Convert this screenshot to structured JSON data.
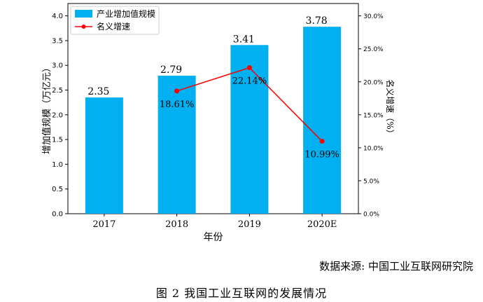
{
  "chart_data": {
    "type": "bar",
    "categories": [
      "2017",
      "2018",
      "2019",
      "2020E"
    ],
    "series": [
      {
        "name": "产业增加值规模",
        "type": "bar",
        "axis": "left",
        "values": [
          2.35,
          2.79,
          3.41,
          3.78
        ],
        "labels": [
          "2.35",
          "2.79",
          "3.41",
          "3.78"
        ],
        "color": "#00b0f0"
      },
      {
        "name": "名义增速",
        "type": "line",
        "axis": "right",
        "values": [
          null,
          18.61,
          22.14,
          10.99
        ],
        "labels": [
          "",
          "18.61%",
          "22.14%",
          "10.99%"
        ],
        "color": "#ff0000"
      }
    ],
    "xlabel": "年份",
    "ylabel": "增加值规模（万亿元）",
    "y2label": "名义增速（%）",
    "ylim": [
      0,
      4.25
    ],
    "y2lim": [
      0,
      31.875
    ],
    "yticks": [
      "0.0",
      "0.5",
      "1.0",
      "1.5",
      "2.0",
      "2.5",
      "3.0",
      "3.5",
      "4.0"
    ],
    "y2ticks": [
      "0.0%",
      "5.0%",
      "10.0%",
      "15.0%",
      "20.0%",
      "25.0%",
      "30.0%"
    ],
    "legend_position": "top-left",
    "grid": false
  },
  "source_note": "数据来源: 中国工业互联网研究院",
  "caption": "图 2    我国工业互联网的发展情况"
}
